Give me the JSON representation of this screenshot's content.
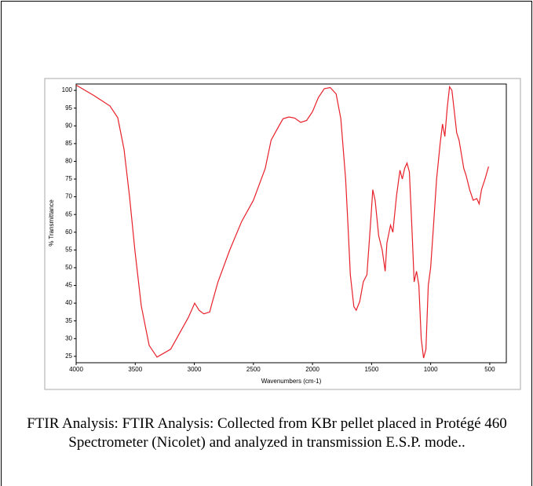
{
  "chart_data": {
    "type": "line",
    "xlabel": "Wavenumbers (cm-1)",
    "ylabel": "% Transmittance",
    "x": [
      4000,
      3847,
      3714,
      3648,
      3595,
      3548,
      3502,
      3449,
      3382,
      3316,
      3200,
      3100,
      3050,
      2997,
      2960,
      2920,
      2870,
      2850,
      2800,
      2700,
      2600,
      2500,
      2400,
      2350,
      2300,
      2250,
      2200,
      2150,
      2100,
      2050,
      2000,
      1950,
      1900,
      1850,
      1800,
      1760,
      1720,
      1700,
      1680,
      1650,
      1630,
      1600,
      1570,
      1540,
      1510,
      1490,
      1470,
      1440,
      1410,
      1385,
      1370,
      1340,
      1320,
      1290,
      1260,
      1240,
      1220,
      1200,
      1180,
      1160,
      1140,
      1120,
      1100,
      1080,
      1060,
      1040,
      1020,
      1000,
      980,
      950,
      920,
      900,
      880,
      860,
      840,
      820,
      800,
      780,
      760,
      720,
      700,
      670,
      640,
      610,
      590,
      570,
      540,
      510
    ],
    "values": [
      101.5,
      98.5,
      95.6,
      92.3,
      83.4,
      70.1,
      54.6,
      39.2,
      28.1,
      24.8,
      27,
      33,
      36,
      40,
      38,
      37,
      37.5,
      40,
      46,
      55,
      63,
      69,
      78,
      86,
      89,
      92,
      92.5,
      92.2,
      91,
      91.5,
      94,
      98,
      100.5,
      100.8,
      99,
      92,
      75,
      62,
      48,
      39,
      38,
      40.5,
      46,
      48,
      62,
      72,
      69,
      59,
      55,
      49,
      57,
      62,
      60,
      70,
      77.5,
      75,
      78,
      79.5,
      77,
      62,
      46,
      49,
      45,
      30,
      24.5,
      27,
      45,
      50,
      60,
      75,
      85,
      90.5,
      87,
      95,
      101,
      100,
      94,
      88,
      86,
      78,
      76,
      72,
      69,
      69.5,
      68,
      72,
      75,
      78.5
    ],
    "color": "#e8202a",
    "xlim": [
      4000,
      360
    ],
    "ylim": [
      23.2,
      101.8
    ],
    "xticks": [
      4000,
      3500,
      3000,
      2500,
      2000,
      1500,
      1000,
      500
    ],
    "yticks": [
      25,
      30,
      35,
      40,
      45,
      50,
      55,
      60,
      65,
      70,
      75,
      80,
      85,
      90,
      95,
      100
    ]
  },
  "caption": "FTIR Analysis: FTIR Analysis: Collected from KBr pellet placed in Protégé 460 Spectrometer (Nicolet) and analyzed in transmission E.S.P. mode.."
}
